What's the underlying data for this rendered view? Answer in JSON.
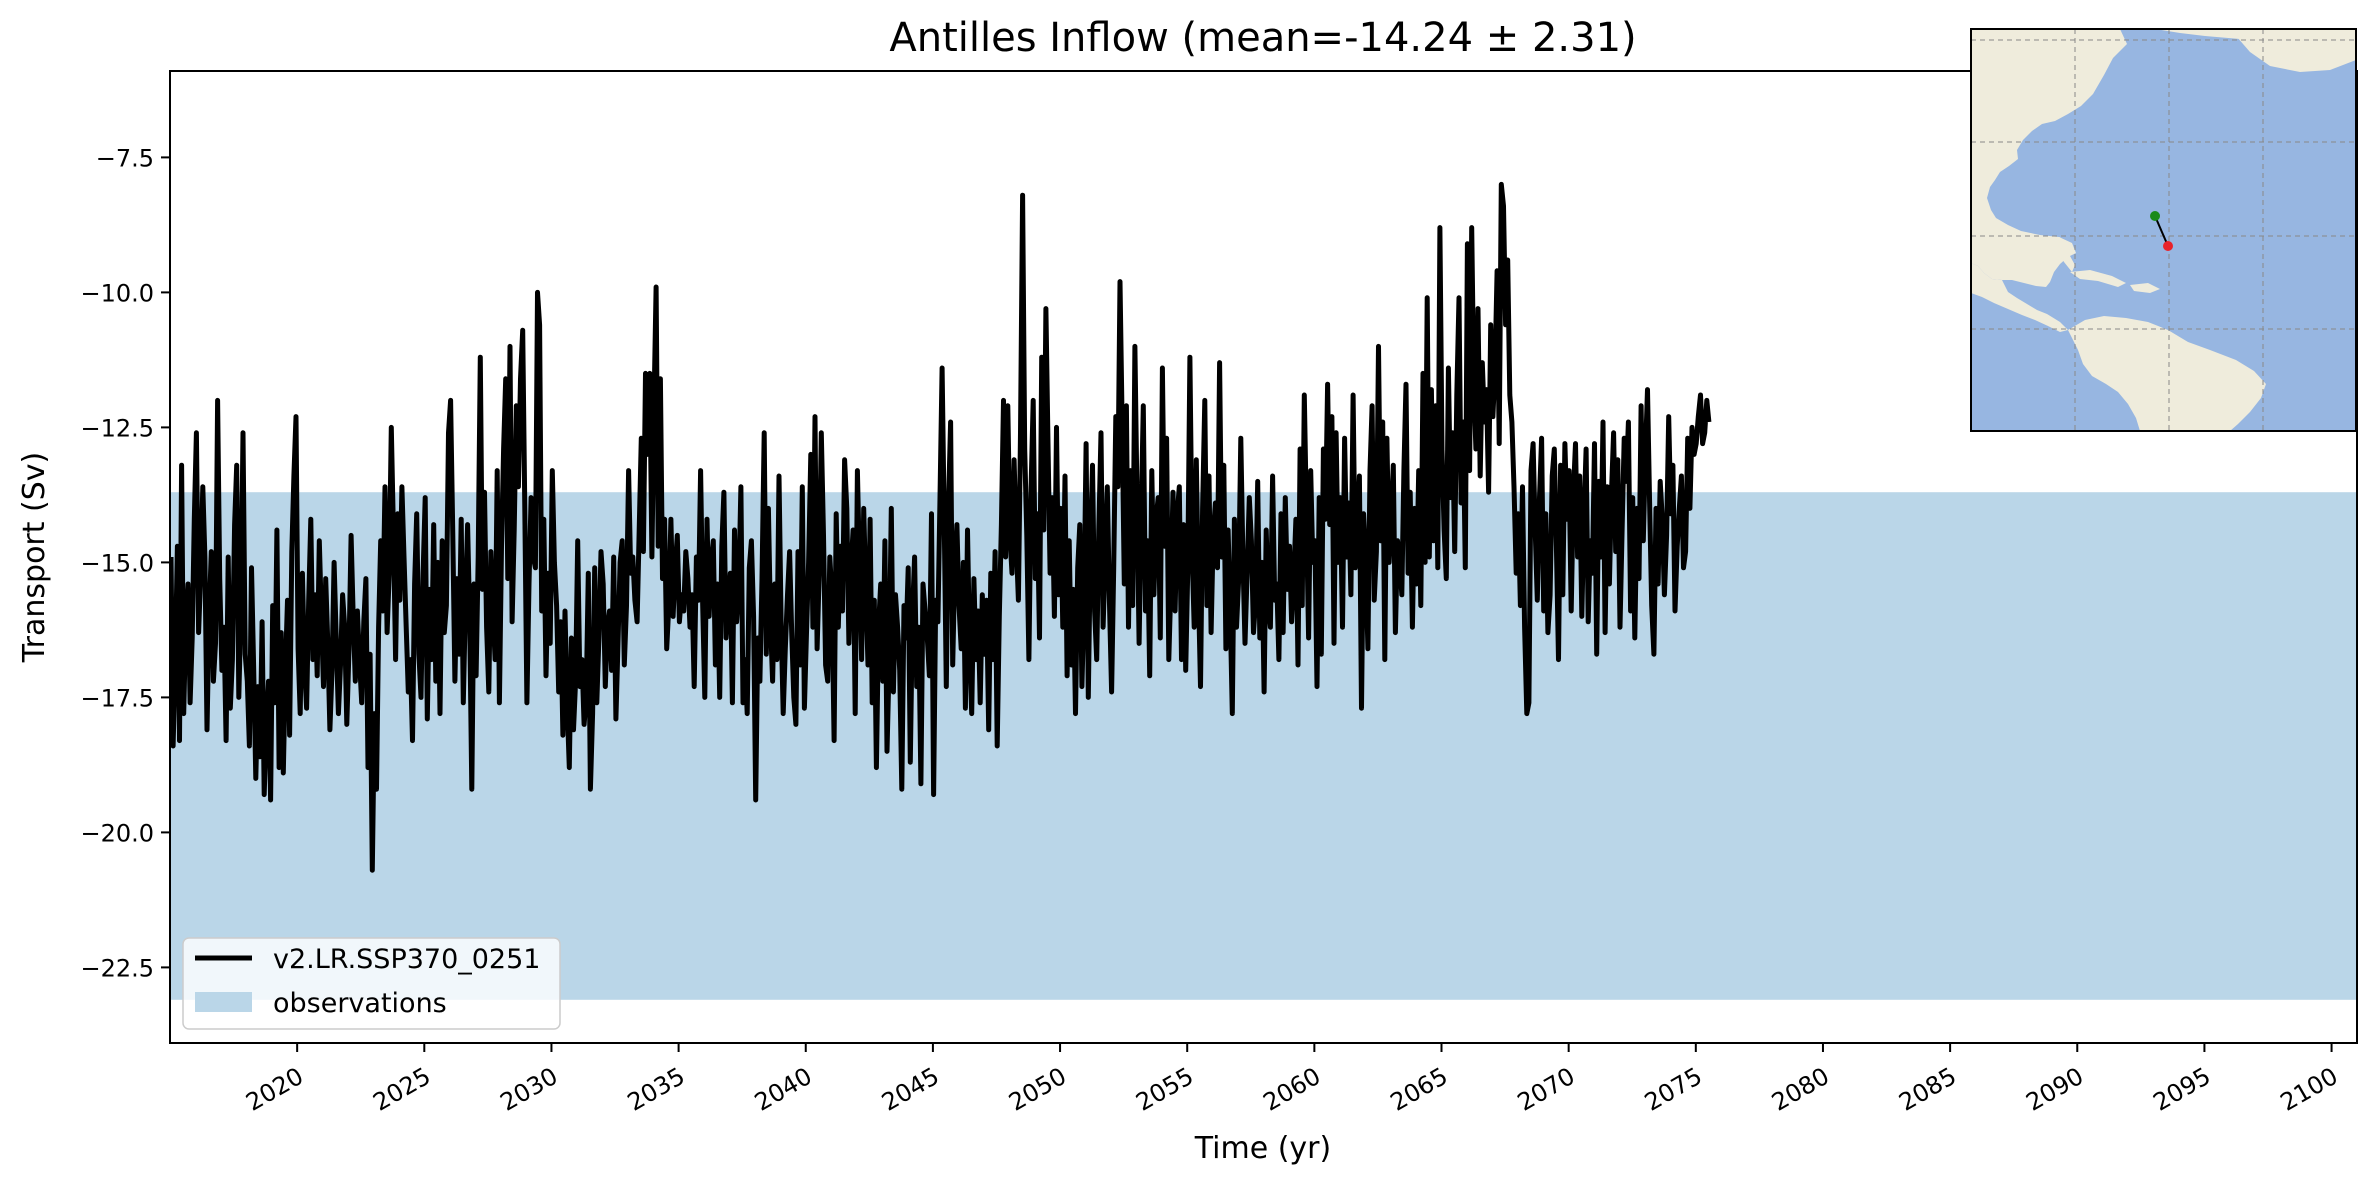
{
  "chart_data": {
    "type": "line",
    "title": "Antilles Inflow (mean=-14.24 ± 2.31)",
    "xlabel": "Time (yr)",
    "ylabel": "Transport (Sv)",
    "xlim": [
      2015,
      2101
    ],
    "ylim": [
      -23.9,
      -5.9
    ],
    "x_ticks": [
      2020,
      2025,
      2030,
      2035,
      2040,
      2045,
      2050,
      2055,
      2060,
      2065,
      2070,
      2075,
      2080,
      2085,
      2090,
      2095,
      2100
    ],
    "x_tick_labels": [
      "2020",
      "2025",
      "2030",
      "2035",
      "2040",
      "2045",
      "2050",
      "2055",
      "2060",
      "2065",
      "2070",
      "2075",
      "2080",
      "2085",
      "2090",
      "2095",
      "2100"
    ],
    "y_ticks": [
      -22.5,
      -20.0,
      -17.5,
      -15.0,
      -12.5,
      -10.0,
      -7.5
    ],
    "y_tick_labels": [
      "−22.5",
      "−20.0",
      "−17.5",
      "−15.0",
      "−12.5",
      "−10.0",
      "−7.5"
    ],
    "observation_band": {
      "label": "observations",
      "y_min": -23.1,
      "y_max": -13.7,
      "color": "#bad6e8"
    },
    "series": [
      {
        "name": "v2.LR.SSP370_0251",
        "color": "#000000",
        "x_start": 2015.04,
        "x_step": 0.0833,
        "values_note": "monthly values; approximate, read from plot",
        "values": [
          -14.9,
          -18.4,
          -16.8,
          -14.7,
          -18.3,
          -13.2,
          -17.8,
          -16.1,
          -15.4,
          -17.6,
          -16.4,
          -14.2,
          -12.6,
          -16.3,
          -15.2,
          -13.6,
          -14.9,
          -18.1,
          -16.0,
          -14.8,
          -17.2,
          -16.5,
          -12.0,
          -15.3,
          -17.0,
          -16.2,
          -18.3,
          -14.9,
          -17.7,
          -16.8,
          -14.3,
          -13.2,
          -17.5,
          -15.9,
          -12.6,
          -16.7,
          -17.2,
          -18.4,
          -15.1,
          -16.9,
          -19.0,
          -17.3,
          -18.6,
          -16.1,
          -19.3,
          -18.0,
          -17.2,
          -19.4,
          -15.8,
          -17.6,
          -14.4,
          -18.8,
          -16.3,
          -18.9,
          -17.0,
          -15.7,
          -18.2,
          -14.8,
          -13.4,
          -12.3,
          -16.6,
          -17.8,
          -15.2,
          -16.9,
          -17.7,
          -15.7,
          -14.2,
          -16.8,
          -15.6,
          -17.1,
          -14.6,
          -16.0,
          -17.3,
          -15.3,
          -16.5,
          -18.1,
          -17.0,
          -15.0,
          -16.4,
          -17.8,
          -16.9,
          -15.6,
          -16.2,
          -18.0,
          -16.6,
          -14.5,
          -16.0,
          -17.2,
          -15.9,
          -16.8,
          -17.6,
          -16.1,
          -15.3,
          -18.8,
          -16.7,
          -20.7,
          -17.8,
          -19.2,
          -16.2,
          -14.6,
          -15.9,
          -13.6,
          -16.3,
          -15.2,
          -12.5,
          -14.4,
          -16.8,
          -14.1,
          -15.7,
          -13.6,
          -14.9,
          -16.2,
          -17.4,
          -16.8,
          -18.3,
          -15.4,
          -14.1,
          -16.7,
          -17.5,
          -15.2,
          -13.8,
          -17.9,
          -15.5,
          -16.8,
          -14.3,
          -17.2,
          -15.0,
          -17.8,
          -14.6,
          -16.3,
          -15.8,
          -12.6,
          -12.0,
          -14.5,
          -17.2,
          -15.3,
          -16.7,
          -14.2,
          -17.6,
          -15.7,
          -14.3,
          -16.1,
          -19.2,
          -15.4,
          -17.1,
          -14.9,
          -11.2,
          -15.5,
          -13.7,
          -16.2,
          -17.4,
          -14.8,
          -15.9,
          -16.8,
          -13.3,
          -17.6,
          -14.7,
          -12.9,
          -11.6,
          -15.3,
          -11.0,
          -16.1,
          -14.4,
          -12.1,
          -13.6,
          -11.6,
          -10.7,
          -14.0,
          -17.6,
          -15.4,
          -13.8,
          -14.9,
          -15.1,
          -10.0,
          -10.6,
          -15.9,
          -14.2,
          -17.1,
          -15.2,
          -16.5,
          -13.3,
          -15.0,
          -15.8,
          -17.4,
          -16.1,
          -18.2,
          -15.9,
          -17.6,
          -18.8,
          -16.4,
          -18.1,
          -17.2,
          -14.6,
          -17.3,
          -16.8,
          -18.0,
          -17.5,
          -15.2,
          -19.2,
          -17.8,
          -15.1,
          -17.6,
          -16.4,
          -14.8,
          -15.4,
          -17.3,
          -16.2,
          -15.9,
          -17.0,
          -14.9,
          -17.9,
          -16.5,
          -15.0,
          -14.6,
          -16.9,
          -15.8,
          -13.3,
          -15.2,
          -14.9,
          -15.7,
          -16.1,
          -14.4,
          -12.7,
          -14.8,
          -11.5,
          -13.0,
          -11.5,
          -14.9,
          -12.1,
          -9.9,
          -14.7,
          -11.6,
          -15.3,
          -14.2,
          -16.6,
          -15.8,
          -14.2,
          -16.0,
          -15.1,
          -14.5,
          -16.1,
          -15.6,
          -15.9,
          -14.8,
          -15.3,
          -16.2,
          -15.6,
          -17.3,
          -14.9,
          -15.7,
          -13.3,
          -15.8,
          -17.5,
          -14.2,
          -16.0,
          -15.0,
          -14.6,
          -16.9,
          -15.4,
          -17.5,
          -14.7,
          -13.7,
          -16.4,
          -15.8,
          -15.2,
          -17.6,
          -14.4,
          -16.1,
          -15.5,
          -13.6,
          -17.6,
          -16.8,
          -17.8,
          -15.1,
          -14.6,
          -16.0,
          -19.4,
          -16.4,
          -17.2,
          -15.3,
          -12.6,
          -16.7,
          -14.0,
          -16.1,
          -17.2,
          -15.4,
          -16.8,
          -13.4,
          -16.1,
          -17.8,
          -16.6,
          -15.6,
          -14.8,
          -16.3,
          -17.5,
          -18.0,
          -14.8,
          -16.9,
          -13.6,
          -17.7,
          -16.3,
          -15.0,
          -13.0,
          -16.2,
          -12.3,
          -16.6,
          -15.2,
          -12.6,
          -14.5,
          -16.9,
          -17.2,
          -14.9,
          -15.6,
          -18.3,
          -14.1,
          -16.2,
          -14.7,
          -15.9,
          -13.1,
          -14.0,
          -16.5,
          -15.1,
          -14.4,
          -17.8,
          -13.3,
          -15.1,
          -16.8,
          -14.0,
          -15.5,
          -16.9,
          -14.2,
          -17.6,
          -15.7,
          -18.8,
          -16.2,
          -15.4,
          -17.2,
          -14.6,
          -18.5,
          -16.9,
          -14.0,
          -17.4,
          -15.6,
          -16.2,
          -17.0,
          -19.2,
          -15.8,
          -16.4,
          -15.1,
          -18.7,
          -16.0,
          -14.9,
          -17.3,
          -16.2,
          -19.1,
          -15.4,
          -15.9,
          -16.4,
          -17.1,
          -14.1,
          -19.3,
          -15.7,
          -16.1,
          -13.8,
          -11.4,
          -14.2,
          -17.3,
          -14.0,
          -12.4,
          -16.9,
          -15.1,
          -14.3,
          -15.8,
          -16.6,
          -15.0,
          -17.7,
          -14.4,
          -16.6,
          -17.8,
          -15.3,
          -16.8,
          -15.9,
          -17.6,
          -15.6,
          -16.7,
          -15.7,
          -18.1,
          -15.2,
          -16.8,
          -14.8,
          -18.4,
          -16.0,
          -14.3,
          -12.0,
          -14.9,
          -12.1,
          -14.5,
          -15.2,
          -13.1,
          -14.6,
          -15.7,
          -12.6,
          -8.2,
          -12.9,
          -14.5,
          -16.8,
          -13.6,
          -12.0,
          -15.3,
          -14.1,
          -16.4,
          -11.2,
          -14.4,
          -10.3,
          -12.8,
          -15.2,
          -13.8,
          -16.0,
          -12.5,
          -15.6,
          -14.0,
          -16.2,
          -13.4,
          -17.1,
          -14.6,
          -16.9,
          -15.5,
          -17.8,
          -15.1,
          -14.3,
          -17.3,
          -15.8,
          -12.8,
          -17.5,
          -14.7,
          -13.2,
          -15.9,
          -16.8,
          -14.4,
          -12.6,
          -16.2,
          -14.9,
          -13.6,
          -15.7,
          -17.4,
          -15.1,
          -12.3,
          -13.6,
          -9.8,
          -12.5,
          -15.4,
          -12.1,
          -16.2,
          -13.3,
          -15.8,
          -11.0,
          -13.8,
          -16.5,
          -14.1,
          -12.1,
          -15.9,
          -14.6,
          -17.1,
          -13.3,
          -15.6,
          -14.2,
          -13.8,
          -16.4,
          -11.4,
          -14.7,
          -12.7,
          -16.8,
          -15.4,
          -13.7,
          -15.9,
          -14.1,
          -13.6,
          -16.8,
          -14.3,
          -17.0,
          -15.1,
          -11.2,
          -14.8,
          -16.2,
          -13.1,
          -15.5,
          -17.3,
          -14.0,
          -12.0,
          -15.8,
          -13.4,
          -16.3,
          -14.5,
          -13.9,
          -15.1,
          -11.3,
          -14.9,
          -13.2,
          -16.6,
          -14.4,
          -15.9,
          -17.8,
          -14.2,
          -16.2,
          -15.3,
          -12.7,
          -14.9,
          -16.5,
          -15.2,
          -13.8,
          -14.6,
          -16.3,
          -15.7,
          -13.5,
          -16.4,
          -15.0,
          -17.4,
          -14.4,
          -15.8,
          -16.2,
          -13.4,
          -15.7,
          -15.4,
          -16.8,
          -14.1,
          -16.3,
          -13.8,
          -15.5,
          -14.7,
          -16.1,
          -15.3,
          -14.2,
          -16.9,
          -12.9,
          -15.8,
          -11.9,
          -14.1,
          -16.4,
          -13.3,
          -15.0,
          -14.6,
          -17.3,
          -13.8,
          -16.7,
          -12.9,
          -14.2,
          -11.7,
          -14.3,
          -12.3,
          -16.5,
          -12.6,
          -15.0,
          -13.8,
          -16.2,
          -12.7,
          -14.9,
          -13.9,
          -15.6,
          -11.9,
          -15.1,
          -14.4,
          -13.4,
          -17.7,
          -14.1,
          -15.0,
          -16.6,
          -13.3,
          -12.1,
          -15.7,
          -14.8,
          -11.0,
          -14.6,
          -12.4,
          -16.8,
          -12.7,
          -15.0,
          -14.2,
          -13.2,
          -16.3,
          -14.6,
          -14.9,
          -15.6,
          -13.3,
          -11.7,
          -15.2,
          -13.7,
          -16.2,
          -14.0,
          -15.4,
          -13.3,
          -15.8,
          -11.5,
          -15.0,
          -10.1,
          -14.9,
          -11.8,
          -14.6,
          -12.1,
          -15.1,
          -8.8,
          -12.9,
          -14.4,
          -15.3,
          -11.4,
          -13.8,
          -12.6,
          -14.8,
          -11.9,
          -10.1,
          -13.9,
          -12.4,
          -15.1,
          -9.1,
          -13.3,
          -8.8,
          -11.7,
          -12.9,
          -10.3,
          -13.4,
          -11.3,
          -12.4,
          -11.8,
          -13.7,
          -10.6,
          -12.3,
          -11.4,
          -9.6,
          -12.8,
          -8.0,
          -8.4,
          -10.6,
          -9.4,
          -11.9,
          -12.4,
          -13.6,
          -15.2,
          -14.1,
          -15.8,
          -13.6,
          -16.2,
          -17.8,
          -17.6,
          -13.3,
          -12.8,
          -14.4,
          -15.7,
          -13.8,
          -12.7,
          -15.9,
          -14.1,
          -16.3,
          -15.6,
          -13.4,
          -12.9,
          -14.7,
          -16.8,
          -13.2,
          -15.6,
          -12.8,
          -14.2,
          -13.3,
          -15.9,
          -13.7,
          -12.8,
          -14.9,
          -13.4,
          -16.0,
          -14.2,
          -12.9,
          -16.1,
          -14.6,
          -15.2,
          -12.8,
          -16.7,
          -13.5,
          -14.9,
          -12.4,
          -16.3,
          -13.6,
          -15.4,
          -13.7,
          -12.6,
          -14.8,
          -13.1,
          -16.2,
          -14.4,
          -12.7,
          -13.5,
          -12.4,
          -15.9,
          -13.8,
          -16.4,
          -14.0,
          -15.3,
          -12.1,
          -14.6,
          -13.0,
          -11.8,
          -13.9,
          -15.8,
          -16.7,
          -14.0,
          -15.4,
          -13.5,
          -14.2,
          -15.6,
          -14.5,
          -12.3,
          -14.1,
          -13.2,
          -15.9,
          -14.7,
          -14.0,
          -13.4,
          -15.1,
          -14.8,
          -12.7,
          -14.0,
          -12.5,
          -13.0,
          -12.8,
          -12.3,
          -11.9,
          -12.8,
          -12.6,
          -12.0,
          -12.4
        ]
      }
    ],
    "legend": {
      "placement": "lower-left",
      "entries": [
        "v2.LR.SSP370_0251",
        "observations"
      ]
    },
    "grid": false
  },
  "inset_map": {
    "land_color": "#efecdc",
    "ocean_color": "#97b6e1",
    "gridlines": true,
    "section_start_color": "#1a8a1a",
    "section_end_color": "#e8222a"
  }
}
